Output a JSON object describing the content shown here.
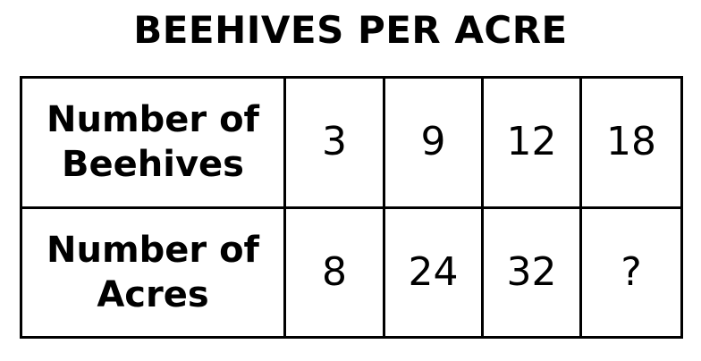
{
  "title": "BEEHIVES PER ACRE",
  "rows": [
    {
      "header_line1": "Number of",
      "header_line2": "Beehives",
      "values": [
        "3",
        "9",
        "12",
        "18"
      ]
    },
    {
      "header_line1": "Number of",
      "header_line2": "Acres",
      "values": [
        "8",
        "24",
        "32",
        "?"
      ]
    }
  ]
}
